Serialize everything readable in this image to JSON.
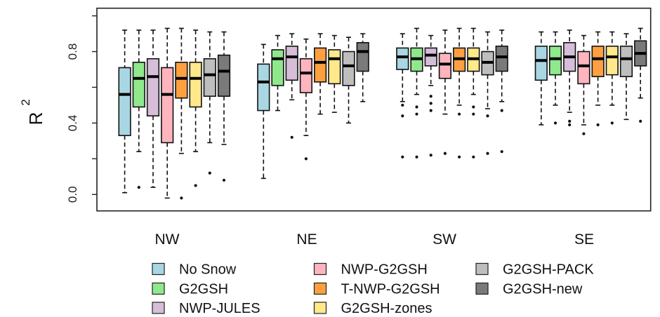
{
  "chart_data": {
    "type": "boxplot",
    "title": "",
    "xlabel": "",
    "ylabel": "R",
    "ylabel_superscript": "2",
    "ylim": [
      -0.03,
      1.02
    ],
    "yticks": [
      0.0,
      0.2,
      0.4,
      0.6,
      0.8,
      1.0
    ],
    "ytick_labels": [
      "0.0",
      "",
      "0.4",
      "",
      "0.8",
      ""
    ],
    "grid": false,
    "legend_position": "bottom",
    "categories": [
      "NW",
      "NE",
      "SW",
      "SE"
    ],
    "series": [
      {
        "name": "No Snow",
        "color": "#A9D6E3",
        "stats": [
          {
            "whislo": 0.01,
            "q1": 0.33,
            "med": 0.56,
            "q3": 0.71,
            "whishi": 0.92,
            "fliers": []
          },
          {
            "whislo": 0.09,
            "q1": 0.47,
            "med": 0.63,
            "q3": 0.73,
            "whishi": 0.84,
            "fliers": []
          },
          {
            "whislo": 0.52,
            "q1": 0.7,
            "med": 0.77,
            "q3": 0.82,
            "whishi": 0.9,
            "fliers": [
              0.5,
              0.44,
              0.21
            ]
          },
          {
            "whislo": 0.39,
            "q1": 0.64,
            "med": 0.75,
            "q3": 0.83,
            "whishi": 0.91,
            "fliers": []
          }
        ]
      },
      {
        "name": "G2GSH",
        "color": "#8FE88C",
        "stats": [
          {
            "whislo": 0.24,
            "q1": 0.49,
            "med": 0.65,
            "q3": 0.74,
            "whishi": 0.92,
            "fliers": [
              0.04
            ]
          },
          {
            "whislo": 0.47,
            "q1": 0.61,
            "med": 0.76,
            "q3": 0.81,
            "whishi": 0.89,
            "fliers": []
          },
          {
            "whislo": 0.56,
            "q1": 0.69,
            "med": 0.76,
            "q3": 0.82,
            "whishi": 0.93,
            "fliers": [
              0.49,
              0.45,
              0.21
            ]
          },
          {
            "whislo": 0.5,
            "q1": 0.67,
            "med": 0.76,
            "q3": 0.83,
            "whishi": 0.91,
            "fliers": [
              0.4
            ]
          }
        ]
      },
      {
        "name": "NWP-JULES",
        "color": "#D6BDD8",
        "stats": [
          {
            "whislo": 0.04,
            "q1": 0.44,
            "med": 0.66,
            "q3": 0.76,
            "whishi": 0.92,
            "fliers": []
          },
          {
            "whislo": 0.53,
            "q1": 0.64,
            "med": 0.77,
            "q3": 0.83,
            "whishi": 0.9,
            "fliers": [
              0.32
            ]
          },
          {
            "whislo": 0.61,
            "q1": 0.72,
            "med": 0.78,
            "q3": 0.82,
            "whishi": 0.89,
            "fliers": [
              0.55,
              0.51,
              0.47,
              0.22
            ]
          },
          {
            "whislo": 0.46,
            "q1": 0.69,
            "med": 0.77,
            "q3": 0.85,
            "whishi": 0.92,
            "fliers": [
              0.41,
              0.39
            ]
          }
        ]
      },
      {
        "name": "NWP-G2GSH",
        "color": "#FFB4BE",
        "stats": [
          {
            "whislo": -0.02,
            "q1": 0.29,
            "med": 0.56,
            "q3": 0.71,
            "whishi": 0.93,
            "fliers": []
          },
          {
            "whislo": 0.33,
            "q1": 0.57,
            "med": 0.68,
            "q3": 0.76,
            "whishi": 0.87,
            "fliers": [
              0.2
            ]
          },
          {
            "whislo": 0.45,
            "q1": 0.65,
            "med": 0.73,
            "q3": 0.79,
            "whishi": 0.92,
            "fliers": [
              0.23
            ]
          },
          {
            "whislo": 0.39,
            "q1": 0.62,
            "med": 0.72,
            "q3": 0.8,
            "whishi": 0.89,
            "fliers": [
              0.34
            ]
          }
        ]
      },
      {
        "name": "T-NWP-G2GSH",
        "color": "#FFA040",
        "stats": [
          {
            "whislo": 0.23,
            "q1": 0.54,
            "med": 0.65,
            "q3": 0.74,
            "whishi": 0.93,
            "fliers": [
              -0.02
            ]
          },
          {
            "whislo": 0.45,
            "q1": 0.63,
            "med": 0.74,
            "q3": 0.82,
            "whishi": 0.9,
            "fliers": []
          },
          {
            "whislo": 0.5,
            "q1": 0.69,
            "med": 0.76,
            "q3": 0.82,
            "whishi": 0.93,
            "fliers": [
              0.45,
              0.21
            ]
          },
          {
            "whislo": 0.5,
            "q1": 0.66,
            "med": 0.76,
            "q3": 0.83,
            "whishi": 0.91,
            "fliers": [
              0.39
            ]
          }
        ]
      },
      {
        "name": "G2GSH-zones",
        "color": "#FFE98A",
        "stats": [
          {
            "whislo": 0.24,
            "q1": 0.49,
            "med": 0.65,
            "q3": 0.74,
            "whishi": 0.92,
            "fliers": [
              0.05
            ]
          },
          {
            "whislo": 0.46,
            "q1": 0.62,
            "med": 0.76,
            "q3": 0.81,
            "whishi": 0.89,
            "fliers": []
          },
          {
            "whislo": 0.56,
            "q1": 0.69,
            "med": 0.76,
            "q3": 0.82,
            "whishi": 0.93,
            "fliers": [
              0.49,
              0.45,
              0.21
            ]
          },
          {
            "whislo": 0.5,
            "q1": 0.67,
            "med": 0.77,
            "q3": 0.83,
            "whishi": 0.91,
            "fliers": [
              0.4
            ]
          }
        ]
      },
      {
        "name": "G2GSH-PACK",
        "color": "#BEBEBE",
        "stats": [
          {
            "whislo": 0.29,
            "q1": 0.55,
            "med": 0.67,
            "q3": 0.76,
            "whishi": 0.91,
            "fliers": [
              0.12
            ]
          },
          {
            "whislo": 0.4,
            "q1": 0.61,
            "med": 0.72,
            "q3": 0.8,
            "whishi": 0.88,
            "fliers": []
          },
          {
            "whislo": 0.48,
            "q1": 0.67,
            "med": 0.74,
            "q3": 0.8,
            "whishi": 0.91,
            "fliers": [
              0.44,
              0.23
            ]
          },
          {
            "whislo": 0.42,
            "q1": 0.66,
            "med": 0.76,
            "q3": 0.83,
            "whishi": 0.9,
            "fliers": []
          }
        ]
      },
      {
        "name": "G2GSH-new",
        "color": "#7A7A7A",
        "stats": [
          {
            "whislo": 0.28,
            "q1": 0.55,
            "med": 0.69,
            "q3": 0.78,
            "whishi": 0.91,
            "fliers": [
              0.08
            ]
          },
          {
            "whislo": 0.52,
            "q1": 0.69,
            "med": 0.8,
            "q3": 0.85,
            "whishi": 0.9,
            "fliers": []
          },
          {
            "whislo": 0.52,
            "q1": 0.69,
            "med": 0.77,
            "q3": 0.83,
            "whishi": 0.92,
            "fliers": [
              0.47,
              0.24
            ]
          },
          {
            "whislo": 0.54,
            "q1": 0.72,
            "med": 0.79,
            "q3": 0.86,
            "whishi": 0.93,
            "fliers": [
              0.41
            ]
          }
        ]
      }
    ]
  }
}
